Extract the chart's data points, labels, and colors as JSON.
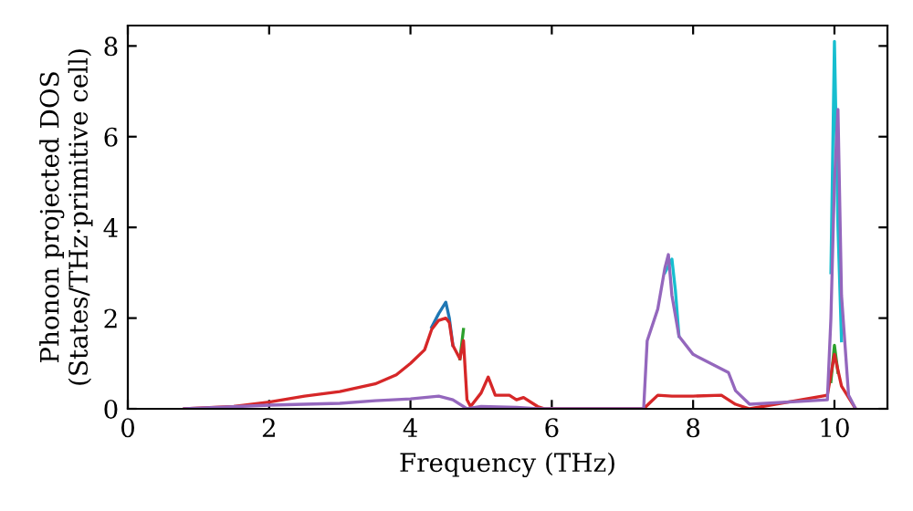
{
  "chart_data": {
    "type": "line",
    "xlabel": "Frequency (THz)",
    "ylabel": "Phonon projected DOS\n(States/THz·primitive cell)",
    "xlim": [
      0,
      10.75
    ],
    "ylim": [
      0,
      8.45
    ],
    "xticks": [
      0,
      2,
      4,
      6,
      8,
      10
    ],
    "yticks": [
      0,
      2,
      4,
      6,
      8
    ],
    "grid": false,
    "legend": false,
    "marker": "none",
    "line_style": "solid",
    "series": [
      {
        "color": "#1f77b4",
        "x": [
          4.3,
          4.4,
          4.5,
          4.55,
          4.6
        ],
        "values": [
          1.8,
          2.1,
          2.35,
          2.0,
          1.4
        ]
      },
      {
        "color": "#2ca02c",
        "x": [
          4.7,
          4.75,
          4.8,
          9.0,
          9.95,
          10.0,
          10.05
        ],
        "values": [
          1.1,
          1.75,
          null,
          null,
          0.6,
          1.4,
          0.8
        ]
      },
      {
        "color": "#d62728",
        "x": [
          0.8,
          1.5,
          2,
          2.5,
          3,
          3.5,
          3.8,
          4.0,
          4.2,
          4.3,
          4.4,
          4.5,
          4.55,
          4.6,
          4.7,
          4.75,
          4.8,
          4.85,
          5.0,
          5.1,
          5.2,
          5.4,
          5.5,
          5.6,
          5.8,
          5.9,
          7.3,
          7.4,
          7.5,
          7.7,
          8.0,
          8.4,
          8.6,
          8.8,
          9.9,
          10.0,
          10.1,
          10.3
        ],
        "values": [
          0,
          0.05,
          0.15,
          0.28,
          0.38,
          0.55,
          0.75,
          1.0,
          1.3,
          1.75,
          1.95,
          2.0,
          1.9,
          1.4,
          1.1,
          1.5,
          0.2,
          0.05,
          0.35,
          0.7,
          0.3,
          0.3,
          0.2,
          0.25,
          0.05,
          0,
          0,
          0.15,
          0.3,
          0.28,
          0.28,
          0.3,
          0.1,
          0,
          0.3,
          1.2,
          0.5,
          0
        ]
      },
      {
        "color": "#17becf",
        "x": [
          7.6,
          7.7,
          7.75,
          7.8,
          9.0,
          9.95,
          10.0,
          10.05,
          10.1
        ],
        "values": [
          3.0,
          3.3,
          2.6,
          1.6,
          null,
          3.0,
          8.1,
          4.0,
          1.5
        ]
      },
      {
        "color": "#9467bd",
        "x": [
          0.8,
          2,
          3,
          3.5,
          4.0,
          4.4,
          4.6,
          4.8,
          5.0,
          5.5,
          5.8,
          7.3,
          7.35,
          7.5,
          7.6,
          7.65,
          7.7,
          7.8,
          8.0,
          8.5,
          8.6,
          8.8,
          9.9,
          9.95,
          10.0,
          10.05,
          10.1,
          10.2,
          10.3
        ],
        "values": [
          0,
          0.08,
          0.12,
          0.18,
          0.22,
          0.28,
          0.2,
          0,
          0.05,
          0.03,
          0,
          0,
          1.5,
          2.2,
          3.1,
          3.4,
          2.5,
          1.6,
          1.2,
          0.8,
          0.4,
          0.1,
          0.2,
          2.0,
          5.0,
          6.6,
          2.5,
          0.3,
          0
        ]
      }
    ]
  }
}
